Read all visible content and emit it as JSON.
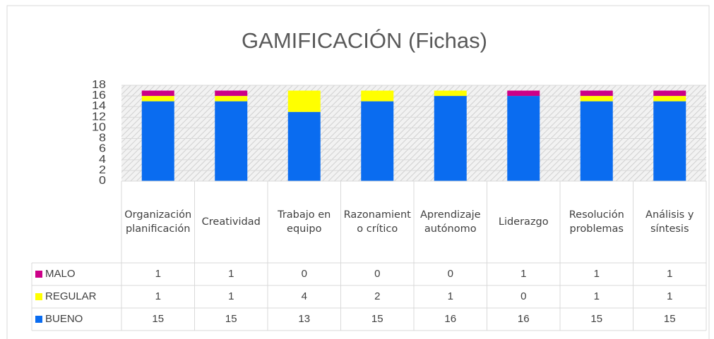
{
  "chart_data": {
    "type": "stacked_bar",
    "title": "GAMIFICACIÓN (Fichas)",
    "categories": [
      "Organización planificación",
      "Creatividad",
      "Trabajo en equipo",
      "Razonamiento crítico",
      "Aprendizaje autónomo",
      "Liderazgo",
      "Resolución problemas",
      "Análisis y síntesis"
    ],
    "series": [
      {
        "name": "BUENO",
        "color": "#0a6cf0",
        "values": [
          15,
          15,
          13,
          15,
          16,
          16,
          15,
          15
        ]
      },
      {
        "name": "REGULAR",
        "color": "#ffff00",
        "values": [
          1,
          1,
          4,
          2,
          1,
          0,
          1,
          1
        ]
      },
      {
        "name": "MALO",
        "color": "#cc0088",
        "values": [
          1,
          1,
          0,
          0,
          0,
          1,
          1,
          1
        ]
      }
    ],
    "ylim": [
      0,
      18
    ],
    "yticks": [
      0,
      2,
      4,
      6,
      8,
      10,
      12,
      14,
      16,
      18
    ],
    "grid": true
  }
}
